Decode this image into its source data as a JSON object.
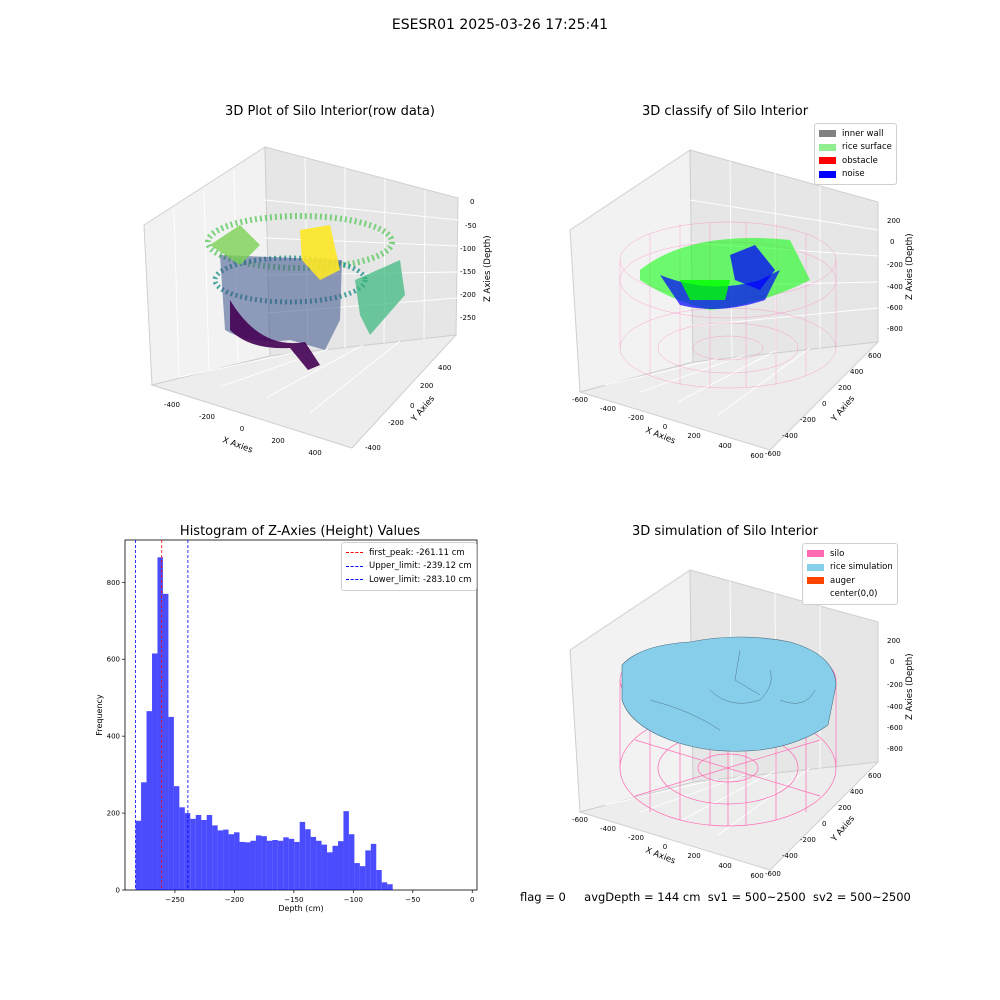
{
  "suptitle": "ESESR01 2025-03-26 17:25:41",
  "panels": {
    "raw": {
      "title": "3D Plot of Silo Interior(row data)",
      "xlabel": "X Axies",
      "ylabel": "Y Axies",
      "zlabel": "Z Axies (Depth)",
      "xticks": [
        "-400",
        "-200",
        "0",
        "200",
        "400"
      ],
      "yticks": [
        "-400",
        "-200",
        "0",
        "200",
        "400"
      ],
      "zticks": [
        "0",
        "-50",
        "-100",
        "-150",
        "-200",
        "-250"
      ]
    },
    "classify": {
      "title": "3D classify of Silo Interior",
      "xlabel": "X Axies",
      "ylabel": "Y Axies",
      "zlabel": "Z Axies (Depth)",
      "xticks": [
        "-600",
        "-400",
        "-200",
        "0",
        "200",
        "400",
        "600"
      ],
      "yticks": [
        "-600",
        "-400",
        "-200",
        "0",
        "200",
        "400",
        "600"
      ],
      "zticks": [
        "200",
        "0",
        "-200",
        "-400",
        "-600",
        "-800"
      ],
      "legend": [
        {
          "label": "inner wall",
          "color": "#808080"
        },
        {
          "label": "rice surface",
          "color": "#90ee90"
        },
        {
          "label": "obstacle",
          "color": "#ff0000"
        },
        {
          "label": "noise",
          "color": "#0000ff"
        }
      ]
    },
    "simulation": {
      "title": "3D simulation of Silo Interior",
      "xlabel": "X Axies",
      "ylabel": "Y Axies",
      "zlabel": "Z Axies (Depth)",
      "xticks": [
        "-600",
        "-400",
        "-200",
        "0",
        "200",
        "400",
        "600"
      ],
      "yticks": [
        "-600",
        "-400",
        "-200",
        "0",
        "200",
        "400",
        "600"
      ],
      "zticks": [
        "200",
        "0",
        "-200",
        "-400",
        "-600",
        "-800"
      ],
      "legend": [
        {
          "label": "silo",
          "color": "#ff69b4"
        },
        {
          "label": "rice simulation",
          "color": "#87ceeb"
        },
        {
          "label": "auger",
          "color": "#ff4500"
        },
        {
          "label": "center(0,0)",
          "color": "#ffffff"
        }
      ]
    }
  },
  "chart_data": [
    {
      "type": "bar",
      "title": "Histogram of Z-Axies (Height) Values",
      "xlabel": "Depth (cm)",
      "ylabel": "Frequency",
      "xlim": [
        -292,
        4
      ],
      "ylim": [
        0,
        910
      ],
      "xticks": [
        -250,
        -200,
        -150,
        -100,
        -50,
        0
      ],
      "yticks": [
        0,
        200,
        400,
        600,
        800
      ],
      "bin_start": -283.1,
      "bin_width": 4.6,
      "values": [
        180,
        280,
        465,
        615,
        865,
        770,
        450,
        270,
        215,
        200,
        185,
        195,
        182,
        195,
        168,
        155,
        157,
        145,
        150,
        125,
        124,
        128,
        142,
        140,
        128,
        130,
        128,
        137,
        133,
        125,
        177,
        158,
        138,
        128,
        118,
        98,
        115,
        127,
        205,
        145,
        70,
        62,
        103,
        120,
        52,
        20,
        15
      ],
      "bar_color": "#0000ff",
      "vlines": [
        {
          "label": "first_peak: -261.11 cm",
          "x": -261.11,
          "color": "#ff0000"
        },
        {
          "label": "Upper_limit: -239.12 cm",
          "x": -239.12,
          "color": "#0000ff"
        },
        {
          "label": "Lower_limit: -283.10 cm",
          "x": -283.1,
          "color": "#0000ff"
        }
      ],
      "legend_position": "top-right"
    }
  ],
  "status": {
    "flag": "flag = 0",
    "avg": "avgDepth = 144 cm",
    "sv1": "sv1 = 500~2500",
    "sv2": "sv2 = 500~2500"
  }
}
